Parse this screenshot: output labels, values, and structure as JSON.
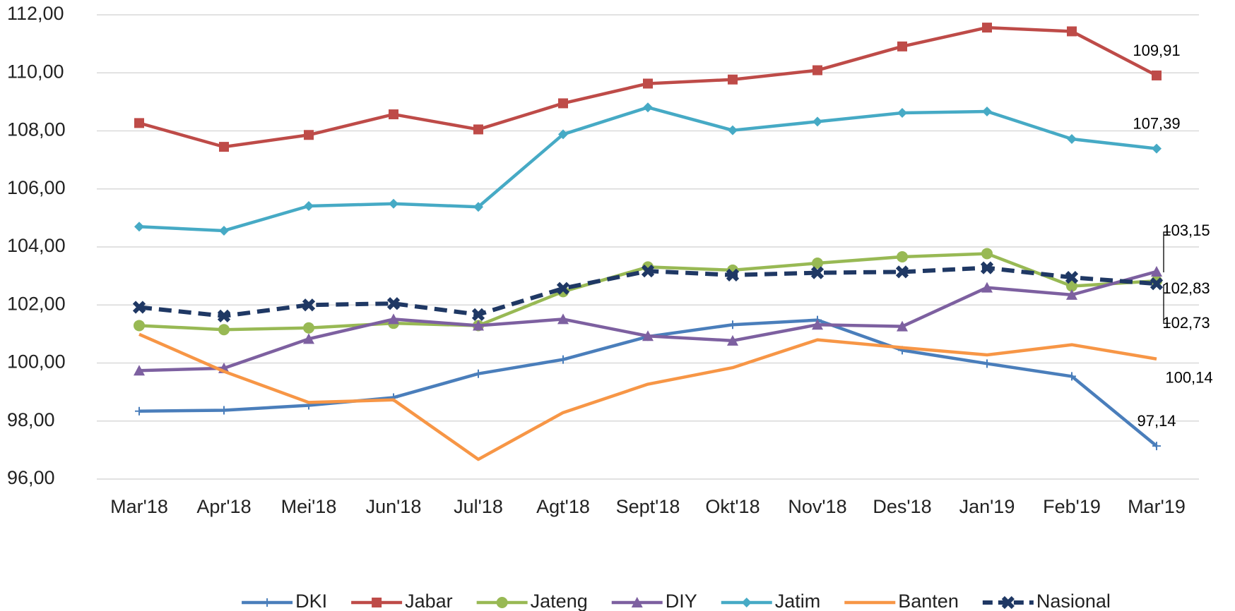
{
  "chart_data": {
    "type": "line",
    "categories": [
      "Mar'18",
      "Apr'18",
      "Mei'18",
      "Jun'18",
      "Jul'18",
      "Agt'18",
      "Sept'18",
      "Okt'18",
      "Nov'18",
      "Des'18",
      "Jan'19",
      "Feb'19",
      "Mar'19"
    ],
    "ylim": [
      96,
      112
    ],
    "yticks": [
      {
        "value": 96,
        "label": "96,00"
      },
      {
        "value": 98,
        "label": "98,00"
      },
      {
        "value": 100,
        "label": "100,00"
      },
      {
        "value": 102,
        "label": "102,00"
      },
      {
        "value": 104,
        "label": "104,00"
      },
      {
        "value": 106,
        "label": "106,00"
      },
      {
        "value": 108,
        "label": "108,00"
      },
      {
        "value": 110,
        "label": "110,00"
      },
      {
        "value": 112,
        "label": "112,00"
      }
    ],
    "grid": true,
    "legend": "bottom",
    "series": [
      {
        "name": "DKI",
        "color": "#4a7ebb",
        "marker": "plus",
        "values": [
          98.34,
          98.37,
          98.54,
          98.81,
          99.63,
          100.12,
          100.91,
          101.32,
          101.48,
          100.44,
          99.98,
          99.54,
          97.14
        ],
        "value_labels": [
          null,
          null,
          null,
          null,
          null,
          null,
          null,
          null,
          null,
          null,
          null,
          null,
          "97,14"
        ]
      },
      {
        "name": "Jabar",
        "color": "#be4b48",
        "marker": "square",
        "values": [
          108.27,
          107.45,
          107.86,
          108.57,
          108.05,
          108.95,
          109.63,
          109.77,
          110.09,
          110.91,
          111.56,
          111.43,
          109.91
        ],
        "value_labels": [
          null,
          null,
          null,
          null,
          null,
          null,
          null,
          null,
          null,
          null,
          null,
          null,
          "109,91"
        ]
      },
      {
        "name": "Jateng",
        "color": "#98b954",
        "marker": "circle",
        "values": [
          101.29,
          101.15,
          101.21,
          101.37,
          101.29,
          102.46,
          103.31,
          103.2,
          103.44,
          103.66,
          103.77,
          102.65,
          102.83
        ],
        "value_labels": [
          null,
          null,
          null,
          null,
          null,
          null,
          null,
          null,
          null,
          null,
          null,
          null,
          "102,83"
        ]
      },
      {
        "name": "DIY",
        "color": "#7d60a0",
        "marker": "triangle",
        "values": [
          99.74,
          99.82,
          100.83,
          101.51,
          101.29,
          101.51,
          100.93,
          100.77,
          101.32,
          101.26,
          102.6,
          102.35,
          103.15
        ],
        "value_labels": [
          null,
          null,
          null,
          null,
          null,
          null,
          null,
          null,
          null,
          null,
          null,
          null,
          "103,15"
        ]
      },
      {
        "name": "Jatim",
        "color": "#46aac5",
        "marker": "diamond",
        "values": [
          104.7,
          104.56,
          105.41,
          105.49,
          105.38,
          107.88,
          108.81,
          108.02,
          108.32,
          108.62,
          108.67,
          107.72,
          107.39
        ],
        "value_labels": [
          null,
          null,
          null,
          null,
          null,
          null,
          null,
          null,
          null,
          null,
          null,
          null,
          "107,39"
        ]
      },
      {
        "name": "Banten",
        "color": "#f79646",
        "marker": "none",
        "values": [
          100.99,
          99.71,
          98.64,
          98.73,
          96.68,
          98.29,
          99.27,
          99.84,
          100.8,
          100.53,
          100.28,
          100.63,
          100.14
        ],
        "value_labels": [
          null,
          null,
          null,
          null,
          null,
          null,
          null,
          null,
          null,
          null,
          null,
          null,
          "100,14"
        ]
      },
      {
        "name": "Nasional",
        "color": "#1f3864",
        "marker": "x",
        "dashed": true,
        "values": [
          101.92,
          101.62,
          102.0,
          102.05,
          101.67,
          102.57,
          103.17,
          103.03,
          103.11,
          103.14,
          103.28,
          102.95,
          102.73
        ],
        "value_labels": [
          null,
          null,
          null,
          null,
          null,
          null,
          null,
          null,
          null,
          null,
          null,
          null,
          "102,73"
        ]
      }
    ]
  }
}
